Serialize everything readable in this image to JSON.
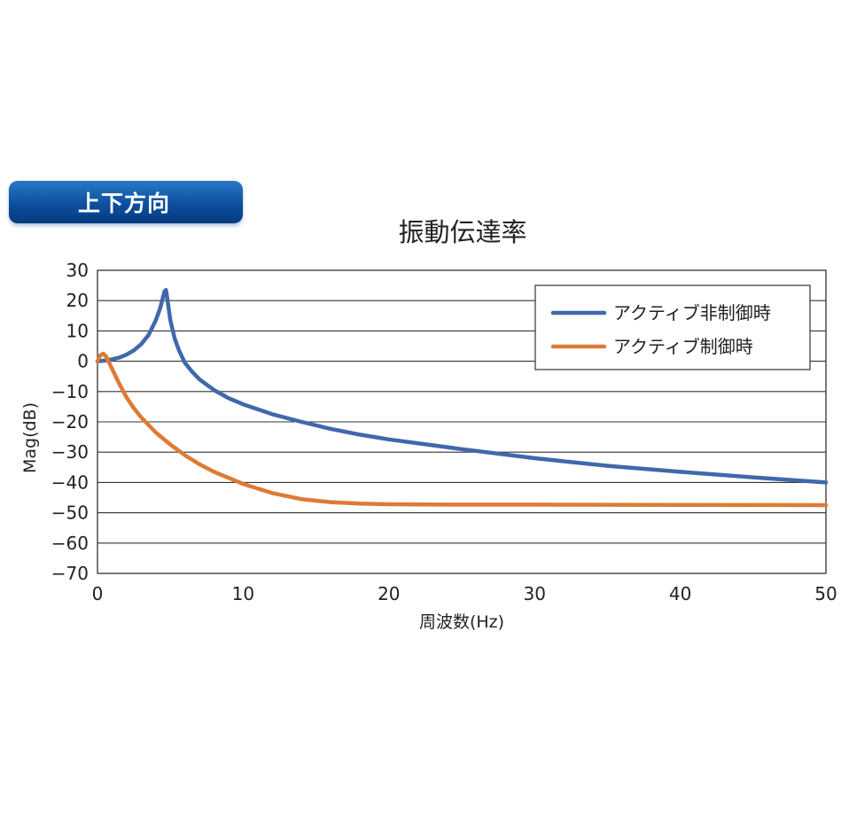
{
  "header": {
    "badge_label": "上下方向"
  },
  "chart_data": {
    "type": "line",
    "title": "振動伝達率",
    "xlabel": "周波数(Hz)",
    "ylabel": "Mag(dB)",
    "xlim": [
      0,
      50
    ],
    "ylim": [
      -70,
      30
    ],
    "xticks": [
      0,
      10,
      20,
      30,
      40,
      50
    ],
    "yticks": [
      30,
      20,
      10,
      0,
      -10,
      -20,
      -30,
      -40,
      -50,
      -60,
      -70
    ],
    "grid": "horizontal",
    "legend_position": "top-right",
    "series": [
      {
        "name": "アクティブ非制御時",
        "color": "#4068ab",
        "x": [
          0,
          0.5,
          1,
          1.5,
          2,
          2.5,
          3,
          3.5,
          4,
          4.3,
          4.6,
          4.7,
          4.8,
          5.0,
          5.3,
          5.6,
          6,
          6.5,
          7,
          8,
          9,
          10,
          12,
          14,
          16,
          18,
          20,
          25,
          30,
          35,
          40,
          45,
          50
        ],
        "y": [
          0,
          0.2,
          0.6,
          1.2,
          2.2,
          3.6,
          5.6,
          8.6,
          13.5,
          17.5,
          23.0,
          23.5,
          20.5,
          13.5,
          7.5,
          3.5,
          -0.5,
          -3.5,
          -6.0,
          -9.5,
          -12.2,
          -14.2,
          -17.5,
          -20.0,
          -22.3,
          -24.2,
          -25.8,
          -29.0,
          -32.0,
          -34.5,
          -36.5,
          -38.3,
          -40.0
        ]
      },
      {
        "name": "アクティブ制御時",
        "color": "#dd7b35",
        "x": [
          0,
          0.2,
          0.4,
          0.6,
          0.8,
          1.0,
          1.5,
          2,
          2.5,
          3,
          4,
          5,
          6,
          7,
          8,
          10,
          12,
          14,
          16,
          18,
          20,
          25,
          30,
          40,
          50
        ],
        "y": [
          0,
          2.0,
          2.5,
          1.5,
          -0.5,
          -2.5,
          -7.5,
          -12.0,
          -15.5,
          -18.5,
          -23.5,
          -27.5,
          -31.0,
          -34.0,
          -36.5,
          -40.5,
          -43.5,
          -45.5,
          -46.5,
          -47.0,
          -47.2,
          -47.3,
          -47.3,
          -47.4,
          -47.5
        ]
      }
    ]
  }
}
